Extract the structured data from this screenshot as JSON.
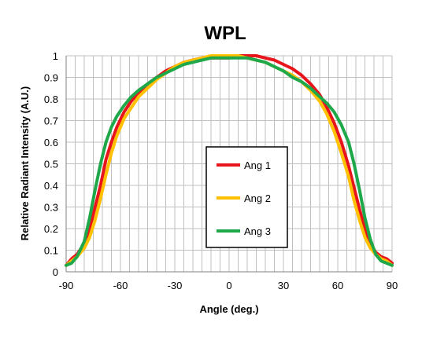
{
  "chart_data": {
    "type": "line",
    "title": "WPL",
    "xlabel": "Angle (deg.)",
    "ylabel": "Relative Radiant Intensity (A.U.)",
    "xlim": [
      -90,
      90
    ],
    "ylim": [
      0,
      1
    ],
    "x_ticks": [
      "-90",
      "-60",
      "-30",
      "0",
      "30",
      "60",
      "90"
    ],
    "y_ticks": [
      "0",
      "0.1",
      "0.2",
      "0.3",
      "0.4",
      "0.5",
      "0.6",
      "0.7",
      "0.8",
      "0.9",
      "1"
    ],
    "grid": true,
    "legend_position": "center",
    "series": [
      {
        "name": "Ang 1",
        "color": "#e8141b",
        "x": [
          -90,
          -87,
          -84,
          -80,
          -77,
          -74,
          -71,
          -68,
          -65,
          -62,
          -58,
          -54,
          -50,
          -45,
          -40,
          -35,
          -30,
          -25,
          -20,
          -15,
          -10,
          -5,
          0,
          5,
          10,
          15,
          20,
          25,
          30,
          35,
          40,
          45,
          50,
          54,
          58,
          62,
          66,
          69,
          72,
          75,
          78,
          81,
          84,
          87,
          90
        ],
        "values": [
          0.03,
          0.06,
          0.08,
          0.13,
          0.2,
          0.3,
          0.4,
          0.52,
          0.6,
          0.67,
          0.74,
          0.79,
          0.83,
          0.87,
          0.9,
          0.93,
          0.95,
          0.97,
          0.98,
          0.99,
          0.99,
          0.99,
          0.99,
          1.0,
          1.0,
          1.0,
          0.99,
          0.98,
          0.96,
          0.94,
          0.91,
          0.87,
          0.82,
          0.76,
          0.69,
          0.6,
          0.49,
          0.39,
          0.29,
          0.2,
          0.13,
          0.09,
          0.07,
          0.06,
          0.04
        ]
      },
      {
        "name": "Ang 2",
        "color": "#ffc000",
        "x": [
          -90,
          -87,
          -84,
          -80,
          -77,
          -74,
          -71,
          -68,
          -65,
          -62,
          -58,
          -54,
          -50,
          -45,
          -40,
          -35,
          -30,
          -25,
          -20,
          -15,
          -10,
          -5,
          0,
          5,
          10,
          15,
          20,
          25,
          30,
          35,
          40,
          45,
          50,
          54,
          58,
          62,
          66,
          69,
          72,
          75,
          78,
          81,
          84,
          87,
          90
        ],
        "values": [
          0.03,
          0.05,
          0.07,
          0.11,
          0.16,
          0.24,
          0.34,
          0.45,
          0.55,
          0.63,
          0.71,
          0.76,
          0.81,
          0.85,
          0.89,
          0.92,
          0.95,
          0.97,
          0.98,
          0.99,
          1.0,
          1.0,
          1.0,
          1.0,
          0.99,
          0.98,
          0.97,
          0.95,
          0.93,
          0.91,
          0.88,
          0.84,
          0.79,
          0.73,
          0.65,
          0.55,
          0.44,
          0.33,
          0.24,
          0.16,
          0.11,
          0.08,
          0.06,
          0.05,
          0.03
        ]
      },
      {
        "name": "Ang 3",
        "color": "#1fa84a",
        "x": [
          -90,
          -87,
          -84,
          -80,
          -77,
          -74,
          -71,
          -68,
          -65,
          -62,
          -58,
          -54,
          -50,
          -45,
          -40,
          -35,
          -30,
          -25,
          -20,
          -15,
          -10,
          -5,
          0,
          5,
          10,
          15,
          20,
          25,
          30,
          35,
          40,
          45,
          50,
          54,
          58,
          62,
          66,
          69,
          72,
          75,
          78,
          81,
          84,
          87,
          90
        ],
        "values": [
          0.03,
          0.04,
          0.07,
          0.14,
          0.25,
          0.38,
          0.5,
          0.6,
          0.67,
          0.72,
          0.77,
          0.81,
          0.84,
          0.87,
          0.9,
          0.92,
          0.94,
          0.96,
          0.97,
          0.98,
          0.99,
          0.99,
          0.99,
          0.99,
          0.99,
          0.98,
          0.97,
          0.95,
          0.93,
          0.9,
          0.88,
          0.85,
          0.81,
          0.78,
          0.74,
          0.68,
          0.6,
          0.5,
          0.38,
          0.25,
          0.15,
          0.08,
          0.05,
          0.04,
          0.03
        ]
      }
    ]
  }
}
